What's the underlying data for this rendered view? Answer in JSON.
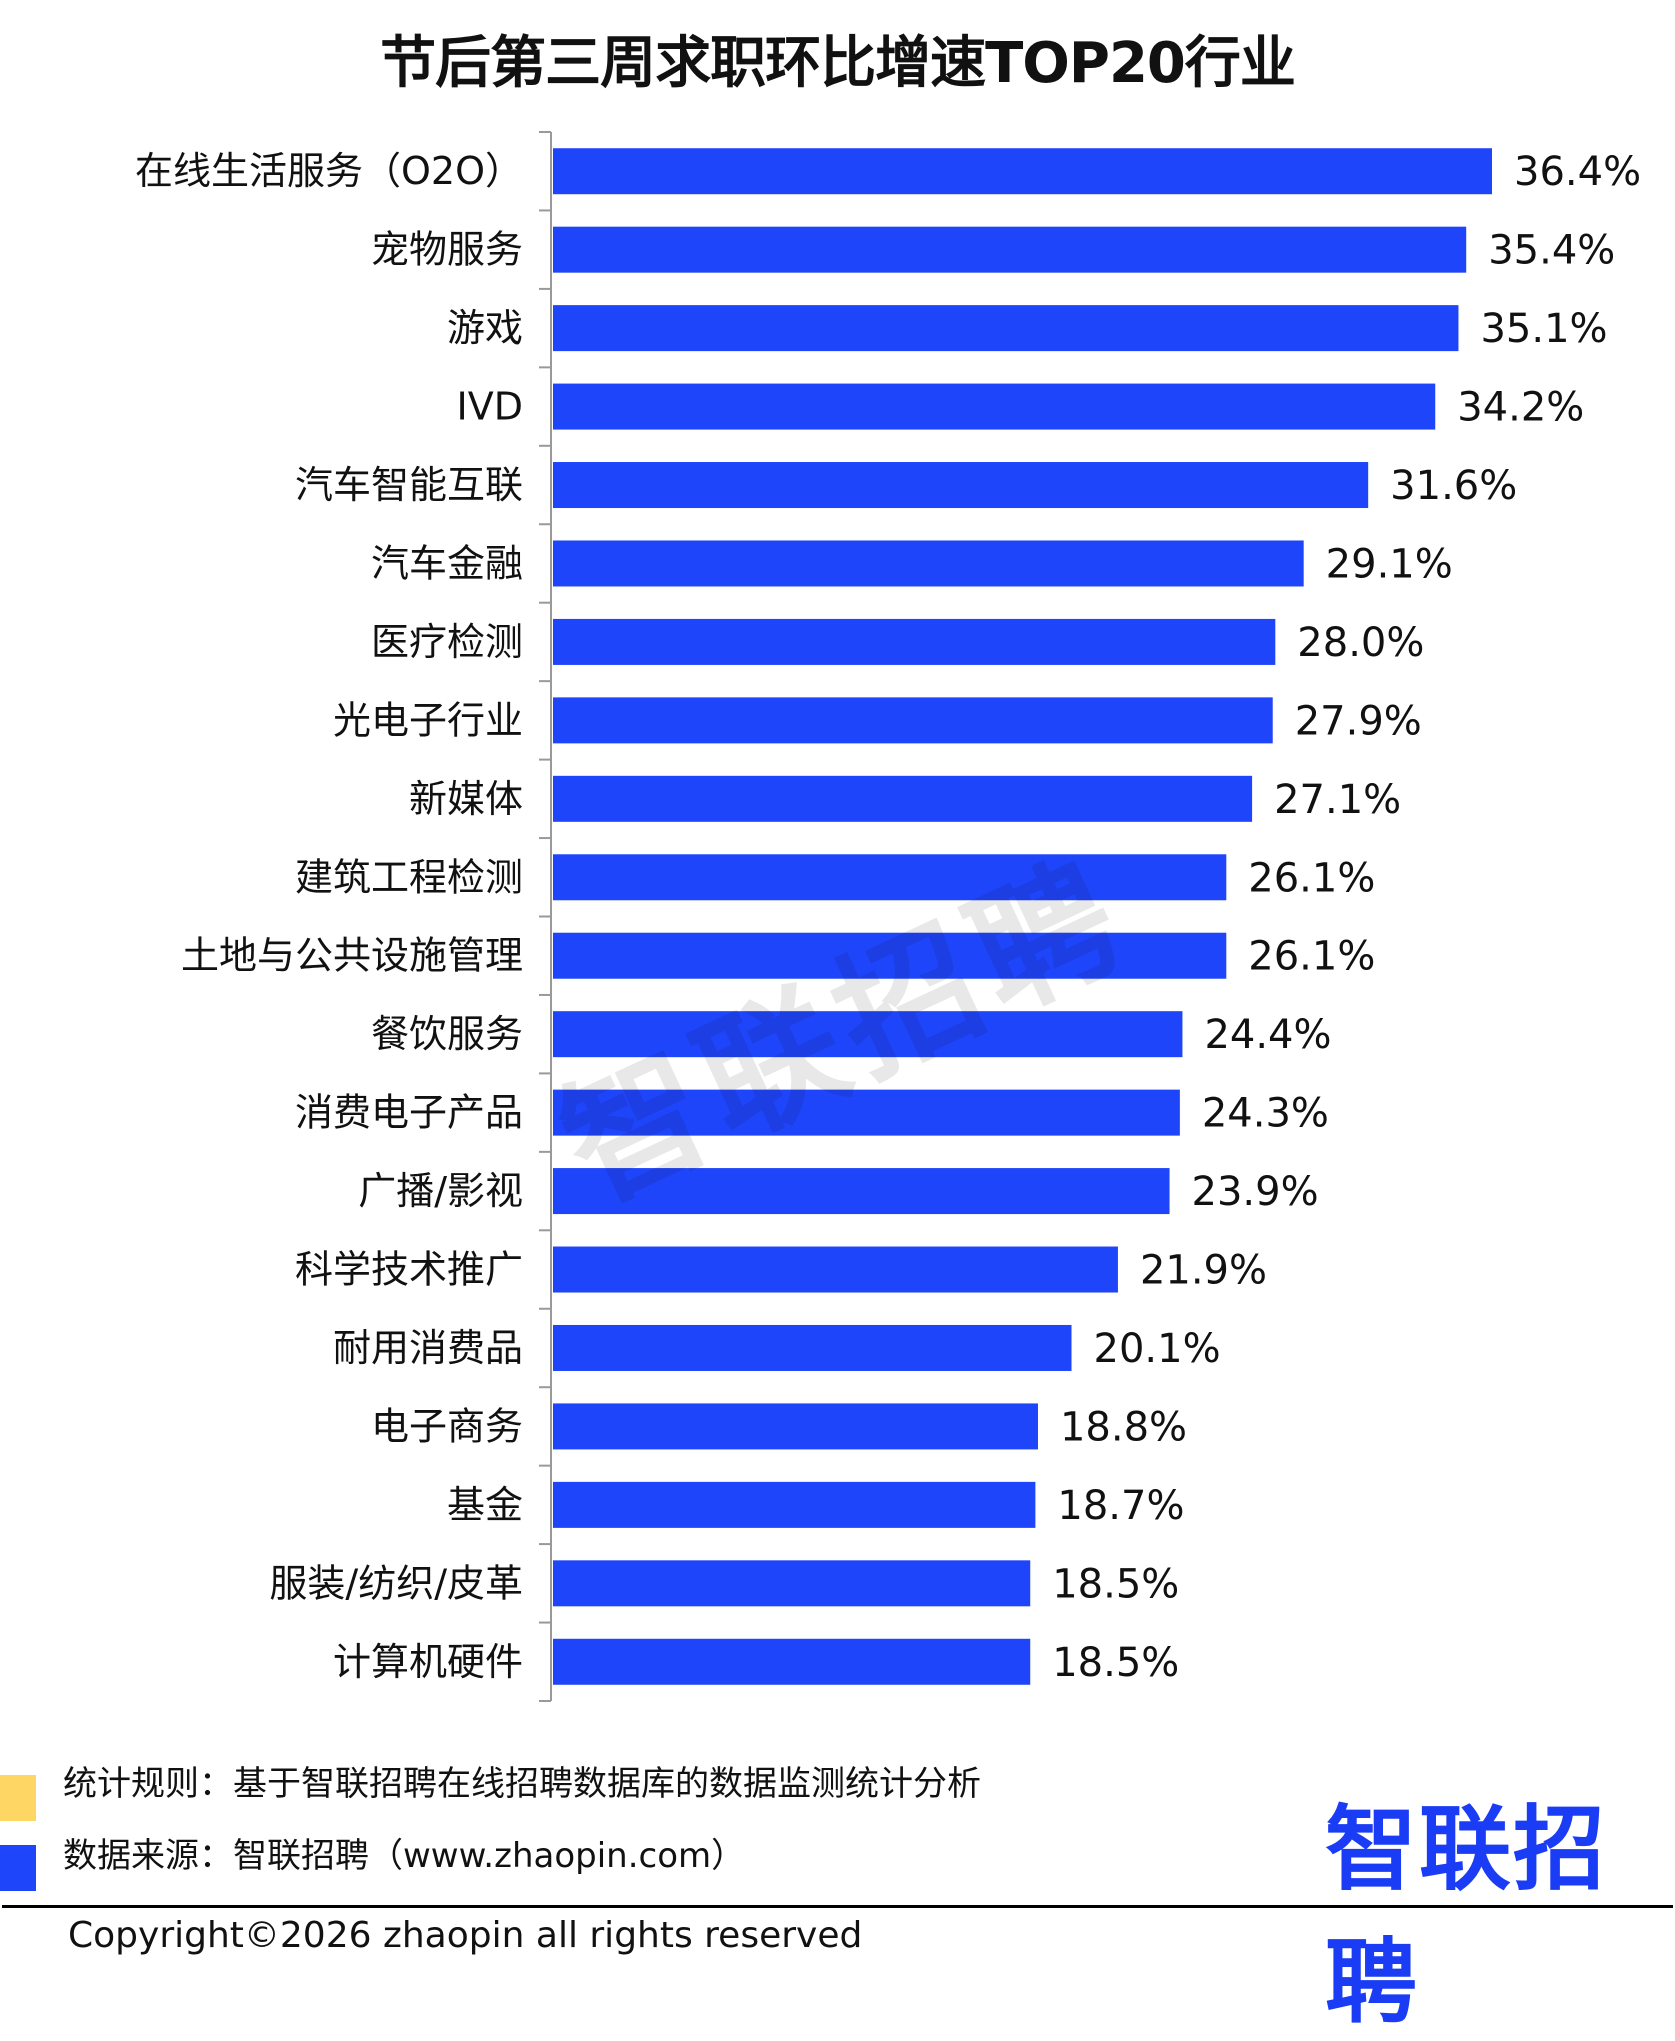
{
  "chart_data": {
    "type": "bar",
    "orientation": "horizontal",
    "title": "节后第三周求职环比增速TOP20行业",
    "categories": [
      "在线生活服务（O2O）",
      "宠物服务",
      "游戏",
      "IVD",
      "汽车智能互联",
      "汽车金融",
      "医疗检测",
      "光电子行业",
      "新媒体",
      "建筑工程检测",
      "土地与公共设施管理",
      "餐饮服务",
      "消费电子产品",
      "广播/影视",
      "科学技术推广",
      "耐用消费品",
      "电子商务",
      "基金",
      "服装/纺织/皮革",
      "计算机硬件"
    ],
    "values": [
      36.4,
      35.4,
      35.1,
      34.2,
      31.6,
      29.1,
      28.0,
      27.9,
      27.1,
      26.1,
      26.1,
      24.4,
      24.3,
      23.9,
      21.9,
      20.1,
      18.8,
      18.7,
      18.5,
      18.5
    ],
    "value_labels": [
      "36.4%",
      "35.4%",
      "35.1%",
      "34.2%",
      "31.6%",
      "29.1%",
      "28.0%",
      "27.9%",
      "27.1%",
      "26.1%",
      "26.1%",
      "24.4%",
      "24.3%",
      "23.9%",
      "21.9%",
      "20.1%",
      "18.8%",
      "18.7%",
      "18.5%",
      "18.5%"
    ],
    "unit": "%",
    "xlim": [
      0,
      36.4
    ],
    "xlabel": "",
    "ylabel": "",
    "grid": false,
    "bar_color": "#1f45fa"
  },
  "watermark": "智联招聘",
  "footer": {
    "rule": "统计规则：基于智联招聘在线招聘数据库的数据监测统计分析",
    "source": "数据来源：智联招聘（www.zhaopin.com）",
    "logo": "智联招聘",
    "copyright": "Copyright©2026 zhaopin all rights reserved",
    "colors": {
      "yellow": "#fdd663",
      "blue": "#1f45fa",
      "logo": "#1a3cf5"
    }
  }
}
